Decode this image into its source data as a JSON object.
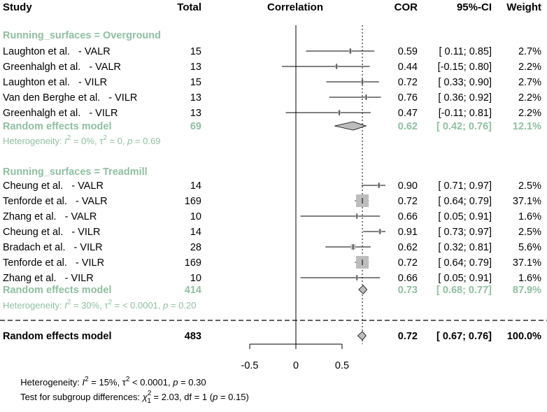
{
  "chart_data": {
    "type": "forest",
    "title": "",
    "xlabel": "",
    "x_ticks": [
      "-0.5",
      "0",
      "0.5"
    ],
    "x_range": [
      -0.5,
      0.5
    ],
    "reference_line": 0.72,
    "columns": {
      "study": "Study",
      "total": "Total",
      "plot": "Correlation",
      "cor": "COR",
      "ci": "95%-CI",
      "weight": "Weight"
    },
    "groups": [
      {
        "label": "Running_surfaces = Overground",
        "studies": [
          {
            "name": "Laughton et al.   - VALR",
            "total": "15",
            "cor_text": "0.59",
            "ci_text": "[ 0.11; 0.85]",
            "weight_text": "2.7%",
            "cor": 0.59,
            "lo": 0.11,
            "hi": 0.85,
            "weight": 2.7
          },
          {
            "name": "Greenhalgh et al.   - VALR",
            "total": "13",
            "cor_text": "0.44",
            "ci_text": "[-0.15; 0.80]",
            "weight_text": "2.2%",
            "cor": 0.44,
            "lo": -0.15,
            "hi": 0.8,
            "weight": 2.2
          },
          {
            "name": "Laughton et al.   - VILR",
            "total": "15",
            "cor_text": "0.72",
            "ci_text": "[ 0.33; 0.90]",
            "weight_text": "2.7%",
            "cor": 0.72,
            "lo": 0.33,
            "hi": 0.9,
            "weight": 2.7
          },
          {
            "name": "Van den Berghe et al.   - VILR",
            "total": "13",
            "cor_text": "0.76",
            "ci_text": "[ 0.36; 0.92]",
            "weight_text": "2.2%",
            "cor": 0.76,
            "lo": 0.36,
            "hi": 0.92,
            "weight": 2.2
          },
          {
            "name": "Greenhalgh et al.   - VILR",
            "total": "13",
            "cor_text": "0.47",
            "ci_text": "[-0.11; 0.81]",
            "weight_text": "2.2%",
            "cor": 0.47,
            "lo": -0.11,
            "hi": 0.81,
            "weight": 2.2
          }
        ],
        "model": {
          "label": "Random effects model",
          "total": "69",
          "cor_text": "0.62",
          "ci_text": "[ 0.42; 0.76]",
          "weight_text": "12.1%",
          "cor": 0.62,
          "lo": 0.42,
          "hi": 0.76
        },
        "heterogeneity": {
          "prefix": "Heterogeneity: ",
          "i2_label": "I",
          "sup": "2",
          "i2_value": " = 0%, τ",
          "tau_sup": "2",
          "tau_value": " = 0, ",
          "p_label": "p",
          "p_value": " = 0.69"
        }
      },
      {
        "label": "Running_surfaces = Treadmill",
        "studies": [
          {
            "name": "Cheung et al.   - VALR",
            "total": "14",
            "cor_text": "0.90",
            "ci_text": "[ 0.71; 0.97]",
            "weight_text": "2.5%",
            "cor": 0.9,
            "lo": 0.71,
            "hi": 0.97,
            "weight": 2.5
          },
          {
            "name": "Tenforde et al.   - VALR",
            "total": "169",
            "cor_text": "0.72",
            "ci_text": "[ 0.64; 0.79]",
            "weight_text": "37.1%",
            "cor": 0.72,
            "lo": 0.64,
            "hi": 0.79,
            "weight": 37.1
          },
          {
            "name": "Zhang et al.   - VALR",
            "total": "10",
            "cor_text": "0.66",
            "ci_text": "[ 0.05; 0.91]",
            "weight_text": "1.6%",
            "cor": 0.66,
            "lo": 0.05,
            "hi": 0.91,
            "weight": 1.6
          },
          {
            "name": "Cheung et al.   - VILR",
            "total": "14",
            "cor_text": "0.91",
            "ci_text": "[ 0.73; 0.97]",
            "weight_text": "2.5%",
            "cor": 0.91,
            "lo": 0.73,
            "hi": 0.97,
            "weight": 2.5
          },
          {
            "name": "Bradach et al.   - VILR",
            "total": "28",
            "cor_text": "0.62",
            "ci_text": "[ 0.32; 0.81]",
            "weight_text": "5.6%",
            "cor": 0.62,
            "lo": 0.32,
            "hi": 0.81,
            "weight": 5.6
          },
          {
            "name": "Tenforde et al.   - VILR",
            "total": "169",
            "cor_text": "0.72",
            "ci_text": "[ 0.64; 0.79]",
            "weight_text": "37.1%",
            "cor": 0.72,
            "lo": 0.64,
            "hi": 0.79,
            "weight": 37.1
          },
          {
            "name": "Zhang et al.   - VILR",
            "total": "10",
            "cor_text": "0.66",
            "ci_text": "[ 0.05; 0.91]",
            "weight_text": "1.6%",
            "cor": 0.66,
            "lo": 0.05,
            "hi": 0.91,
            "weight": 1.6
          }
        ],
        "model": {
          "label": "Random effects model",
          "total": "414",
          "cor_text": "0.73",
          "ci_text": "[ 0.68; 0.77]",
          "weight_text": "87.9%",
          "cor": 0.73,
          "lo": 0.68,
          "hi": 0.77
        },
        "heterogeneity": {
          "prefix": "Heterogeneity: ",
          "i2_label": "I",
          "sup": "2",
          "i2_value": " = 30%, τ",
          "tau_sup": "2",
          "tau_value": " = < 0.0001, ",
          "p_label": "p",
          "p_value": " = 0.20"
        }
      }
    ],
    "overall": {
      "label": "Random effects model",
      "total": "483",
      "cor_text": "0.72",
      "ci_text": "[ 0.67; 0.76]",
      "weight_text": "100.0%",
      "cor": 0.72,
      "lo": 0.67,
      "hi": 0.76
    },
    "footer": {
      "heterogeneity": {
        "prefix": "Heterogeneity: ",
        "i2_label": "I",
        "sup": "2",
        "i2_value": " = 15%, τ",
        "tau_sup": "2",
        "tau_value": " < 0.0001, ",
        "p_label": "p",
        "p_value": " = 0.30"
      },
      "subgroup_test": {
        "prefix": "Test for subgroup differences: ",
        "chi": "χ",
        "chi_sup": "2",
        "chi_sub": "1",
        "stat": " = 2.03, df = 1 (",
        "p_label": "p",
        "p_value": " = 0.15)"
      }
    },
    "colors": {
      "group_label": "#8fbfa0",
      "square": "#bdbdbd",
      "diamond": "#bdbdbd",
      "text": "#000000"
    }
  }
}
